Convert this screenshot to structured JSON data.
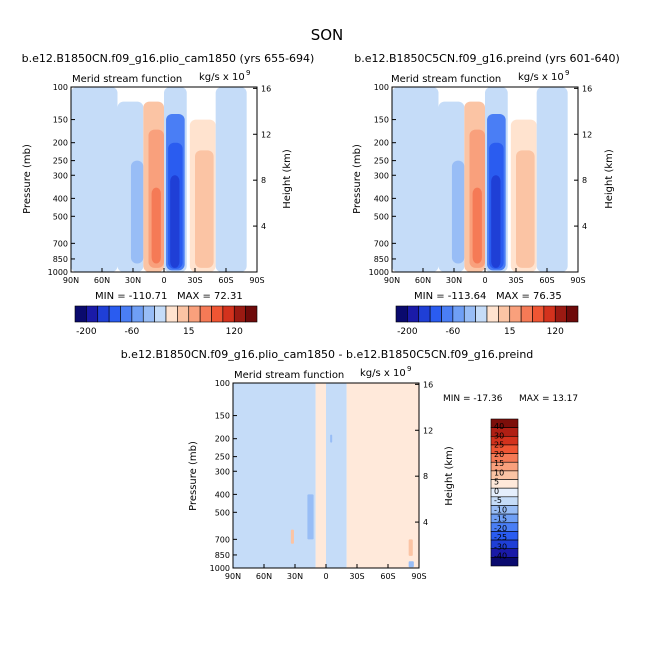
{
  "figure": {
    "season": "SON",
    "colors": {
      "levels_top": [
        "#0a0a6e",
        "#1a1aa8",
        "#1f3fd6",
        "#2a5cf0",
        "#4a7ef5",
        "#6f9ff5",
        "#98bdf6",
        "#c5dcf8",
        "#ffe3cf",
        "#fbc4a4",
        "#f9a07c",
        "#f57a56",
        "#ef5533",
        "#d3321d",
        "#9b1a12",
        "#6e0a0a"
      ],
      "levels_diff": [
        "#0a0a6e",
        "#1a1aa8",
        "#1f3fd6",
        "#2a5cf0",
        "#4a7ef5",
        "#6f9ff5",
        "#98bdf6",
        "#c5dcf8",
        "#e5effd",
        "#ffe9da",
        "#fbc4a4",
        "#f9a07c",
        "#f57a56",
        "#ef5533",
        "#d3321d",
        "#b01f14",
        "#7d0e0a"
      ]
    }
  },
  "chart_data": [
    {
      "type": "heatmap",
      "title": "b.e12.B1850CN.f09_g16.plio_cam1850 (yrs 655-694)",
      "subtitle_left": "Merid stream function",
      "subtitle_right": "kg/s x 10",
      "subtitle_exp": "9",
      "ylabel": "Pressure (mb)",
      "y2label": "Height (km)",
      "x_ticks": [
        "90N",
        "60N",
        "30N",
        "0",
        "30S",
        "60S",
        "90S"
      ],
      "y_ticks": [
        "100",
        "150",
        "200",
        "250",
        "300",
        "400",
        "500",
        "700",
        "850",
        "1000"
      ],
      "y2_ticks": [
        "16",
        "12",
        "8",
        "4"
      ],
      "min_label": "MIN = -110.71",
      "max_label": "MAX = 72.31",
      "min": -110.71,
      "max": 72.31,
      "colorbar_labels": [
        "-200",
        "-60",
        "15",
        "120"
      ],
      "cells": [
        {
          "lat": [
            -90,
            -45
          ],
          "p": [
            100,
            1000
          ],
          "v": -3
        },
        {
          "lat": [
            -45,
            -20
          ],
          "p": [
            120,
            1000
          ],
          "v": -8
        },
        {
          "lat": [
            -32,
            -20
          ],
          "p": [
            250,
            900
          ],
          "v": -12
        },
        {
          "lat": [
            -20,
            0
          ],
          "p": [
            120,
            1000
          ],
          "v": 10
        },
        {
          "lat": [
            -15,
            0
          ],
          "p": [
            170,
            950
          ],
          "v": 25
        },
        {
          "lat": [
            -12,
            -3
          ],
          "p": [
            350,
            900
          ],
          "v": 45
        },
        {
          "lat": [
            0,
            22
          ],
          "p": [
            100,
            1000
          ],
          "v": -10
        },
        {
          "lat": [
            2,
            20
          ],
          "p": [
            140,
            980
          ],
          "v": -35
        },
        {
          "lat": [
            4,
            18
          ],
          "p": [
            200,
            960
          ],
          "v": -60
        },
        {
          "lat": [
            6,
            15
          ],
          "p": [
            300,
            950
          ],
          "v": -90
        },
        {
          "lat": [
            25,
            50
          ],
          "p": [
            150,
            1000
          ],
          "v": 5
        },
        {
          "lat": [
            30,
            48
          ],
          "p": [
            220,
            950
          ],
          "v": 12
        },
        {
          "lat": [
            50,
            80
          ],
          "p": [
            100,
            1000
          ],
          "v": -3
        }
      ]
    },
    {
      "type": "heatmap",
      "title": "b.e12.B1850C5CN.f09_g16.preind (yrs 601-640)",
      "subtitle_left": "Merid stream function",
      "subtitle_right": "kg/s x 10",
      "subtitle_exp": "9",
      "ylabel": "Pressure (mb)",
      "y2label": "Height (km)",
      "x_ticks": [
        "90N",
        "60N",
        "30N",
        "0",
        "30S",
        "60S",
        "90S"
      ],
      "y_ticks": [
        "100",
        "150",
        "200",
        "250",
        "300",
        "400",
        "500",
        "700",
        "850",
        "1000"
      ],
      "y2_ticks": [
        "16",
        "12",
        "8",
        "4"
      ],
      "min_label": "MIN = -113.64",
      "max_label": "MAX = 76.35",
      "min": -113.64,
      "max": 76.35,
      "colorbar_labels": [
        "-200",
        "-60",
        "15",
        "120"
      ],
      "cells": [
        {
          "lat": [
            -90,
            -45
          ],
          "p": [
            100,
            1000
          ],
          "v": -3
        },
        {
          "lat": [
            -45,
            -20
          ],
          "p": [
            120,
            1000
          ],
          "v": -8
        },
        {
          "lat": [
            -32,
            -20
          ],
          "p": [
            250,
            900
          ],
          "v": -12
        },
        {
          "lat": [
            -20,
            0
          ],
          "p": [
            120,
            1000
          ],
          "v": 10
        },
        {
          "lat": [
            -15,
            0
          ],
          "p": [
            170,
            950
          ],
          "v": 25
        },
        {
          "lat": [
            -12,
            -3
          ],
          "p": [
            350,
            900
          ],
          "v": 45
        },
        {
          "lat": [
            0,
            22
          ],
          "p": [
            100,
            1000
          ],
          "v": -10
        },
        {
          "lat": [
            2,
            20
          ],
          "p": [
            140,
            980
          ],
          "v": -35
        },
        {
          "lat": [
            4,
            18
          ],
          "p": [
            200,
            960
          ],
          "v": -60
        },
        {
          "lat": [
            6,
            15
          ],
          "p": [
            300,
            950
          ],
          "v": -95
        },
        {
          "lat": [
            25,
            50
          ],
          "p": [
            150,
            1000
          ],
          "v": 5
        },
        {
          "lat": [
            30,
            48
          ],
          "p": [
            220,
            950
          ],
          "v": 12
        },
        {
          "lat": [
            50,
            80
          ],
          "p": [
            100,
            1000
          ],
          "v": -3
        }
      ]
    },
    {
      "type": "heatmap",
      "title": "b.e12.B1850CN.f09_g16.plio_cam1850 - b.e12.B1850C5CN.f09_g16.preind",
      "subtitle_left": "Merid stream function",
      "subtitle_right": "kg/s x 10",
      "subtitle_exp": "9",
      "ylabel": "Pressure (mb)",
      "y2label": "Height (km)",
      "x_ticks": [
        "90N",
        "60N",
        "30N",
        "0",
        "30S",
        "60S",
        "90S"
      ],
      "y_ticks": [
        "100",
        "150",
        "200",
        "250",
        "300",
        "400",
        "500",
        "700",
        "850",
        "1000"
      ],
      "y2_ticks": [
        "16",
        "12",
        "8",
        "4"
      ],
      "min_label": "MIN = -17.36",
      "max_label": "MAX = 13.17",
      "min": -17.36,
      "max": 13.17,
      "colorbar_labels": [
        "40",
        "30",
        "25",
        "20",
        "15",
        "10",
        "5",
        "0",
        "-5",
        "-10",
        "-15",
        "-20",
        "-25",
        "-30",
        "-40"
      ],
      "cells": [
        {
          "lat": [
            -90,
            -10
          ],
          "p": [
            100,
            1000
          ],
          "v": -2
        },
        {
          "lat": [
            -10,
            0
          ],
          "p": [
            100,
            1000
          ],
          "v": 2
        },
        {
          "lat": [
            0,
            20
          ],
          "p": [
            100,
            1000
          ],
          "v": -2
        },
        {
          "lat": [
            20,
            90
          ],
          "p": [
            100,
            1000
          ],
          "v": 2
        },
        {
          "lat": [
            -18,
            -12
          ],
          "p": [
            400,
            700
          ],
          "v": -6
        },
        {
          "lat": [
            -34,
            -31
          ],
          "p": [
            620,
            740
          ],
          "v": 6
        },
        {
          "lat": [
            4,
            6
          ],
          "p": [
            190,
            210
          ],
          "v": -6
        },
        {
          "lat": [
            80,
            84
          ],
          "p": [
            700,
            860
          ],
          "v": 6
        },
        {
          "lat": [
            80,
            85
          ],
          "p": [
            920,
            990
          ],
          "v": -6
        }
      ]
    }
  ]
}
